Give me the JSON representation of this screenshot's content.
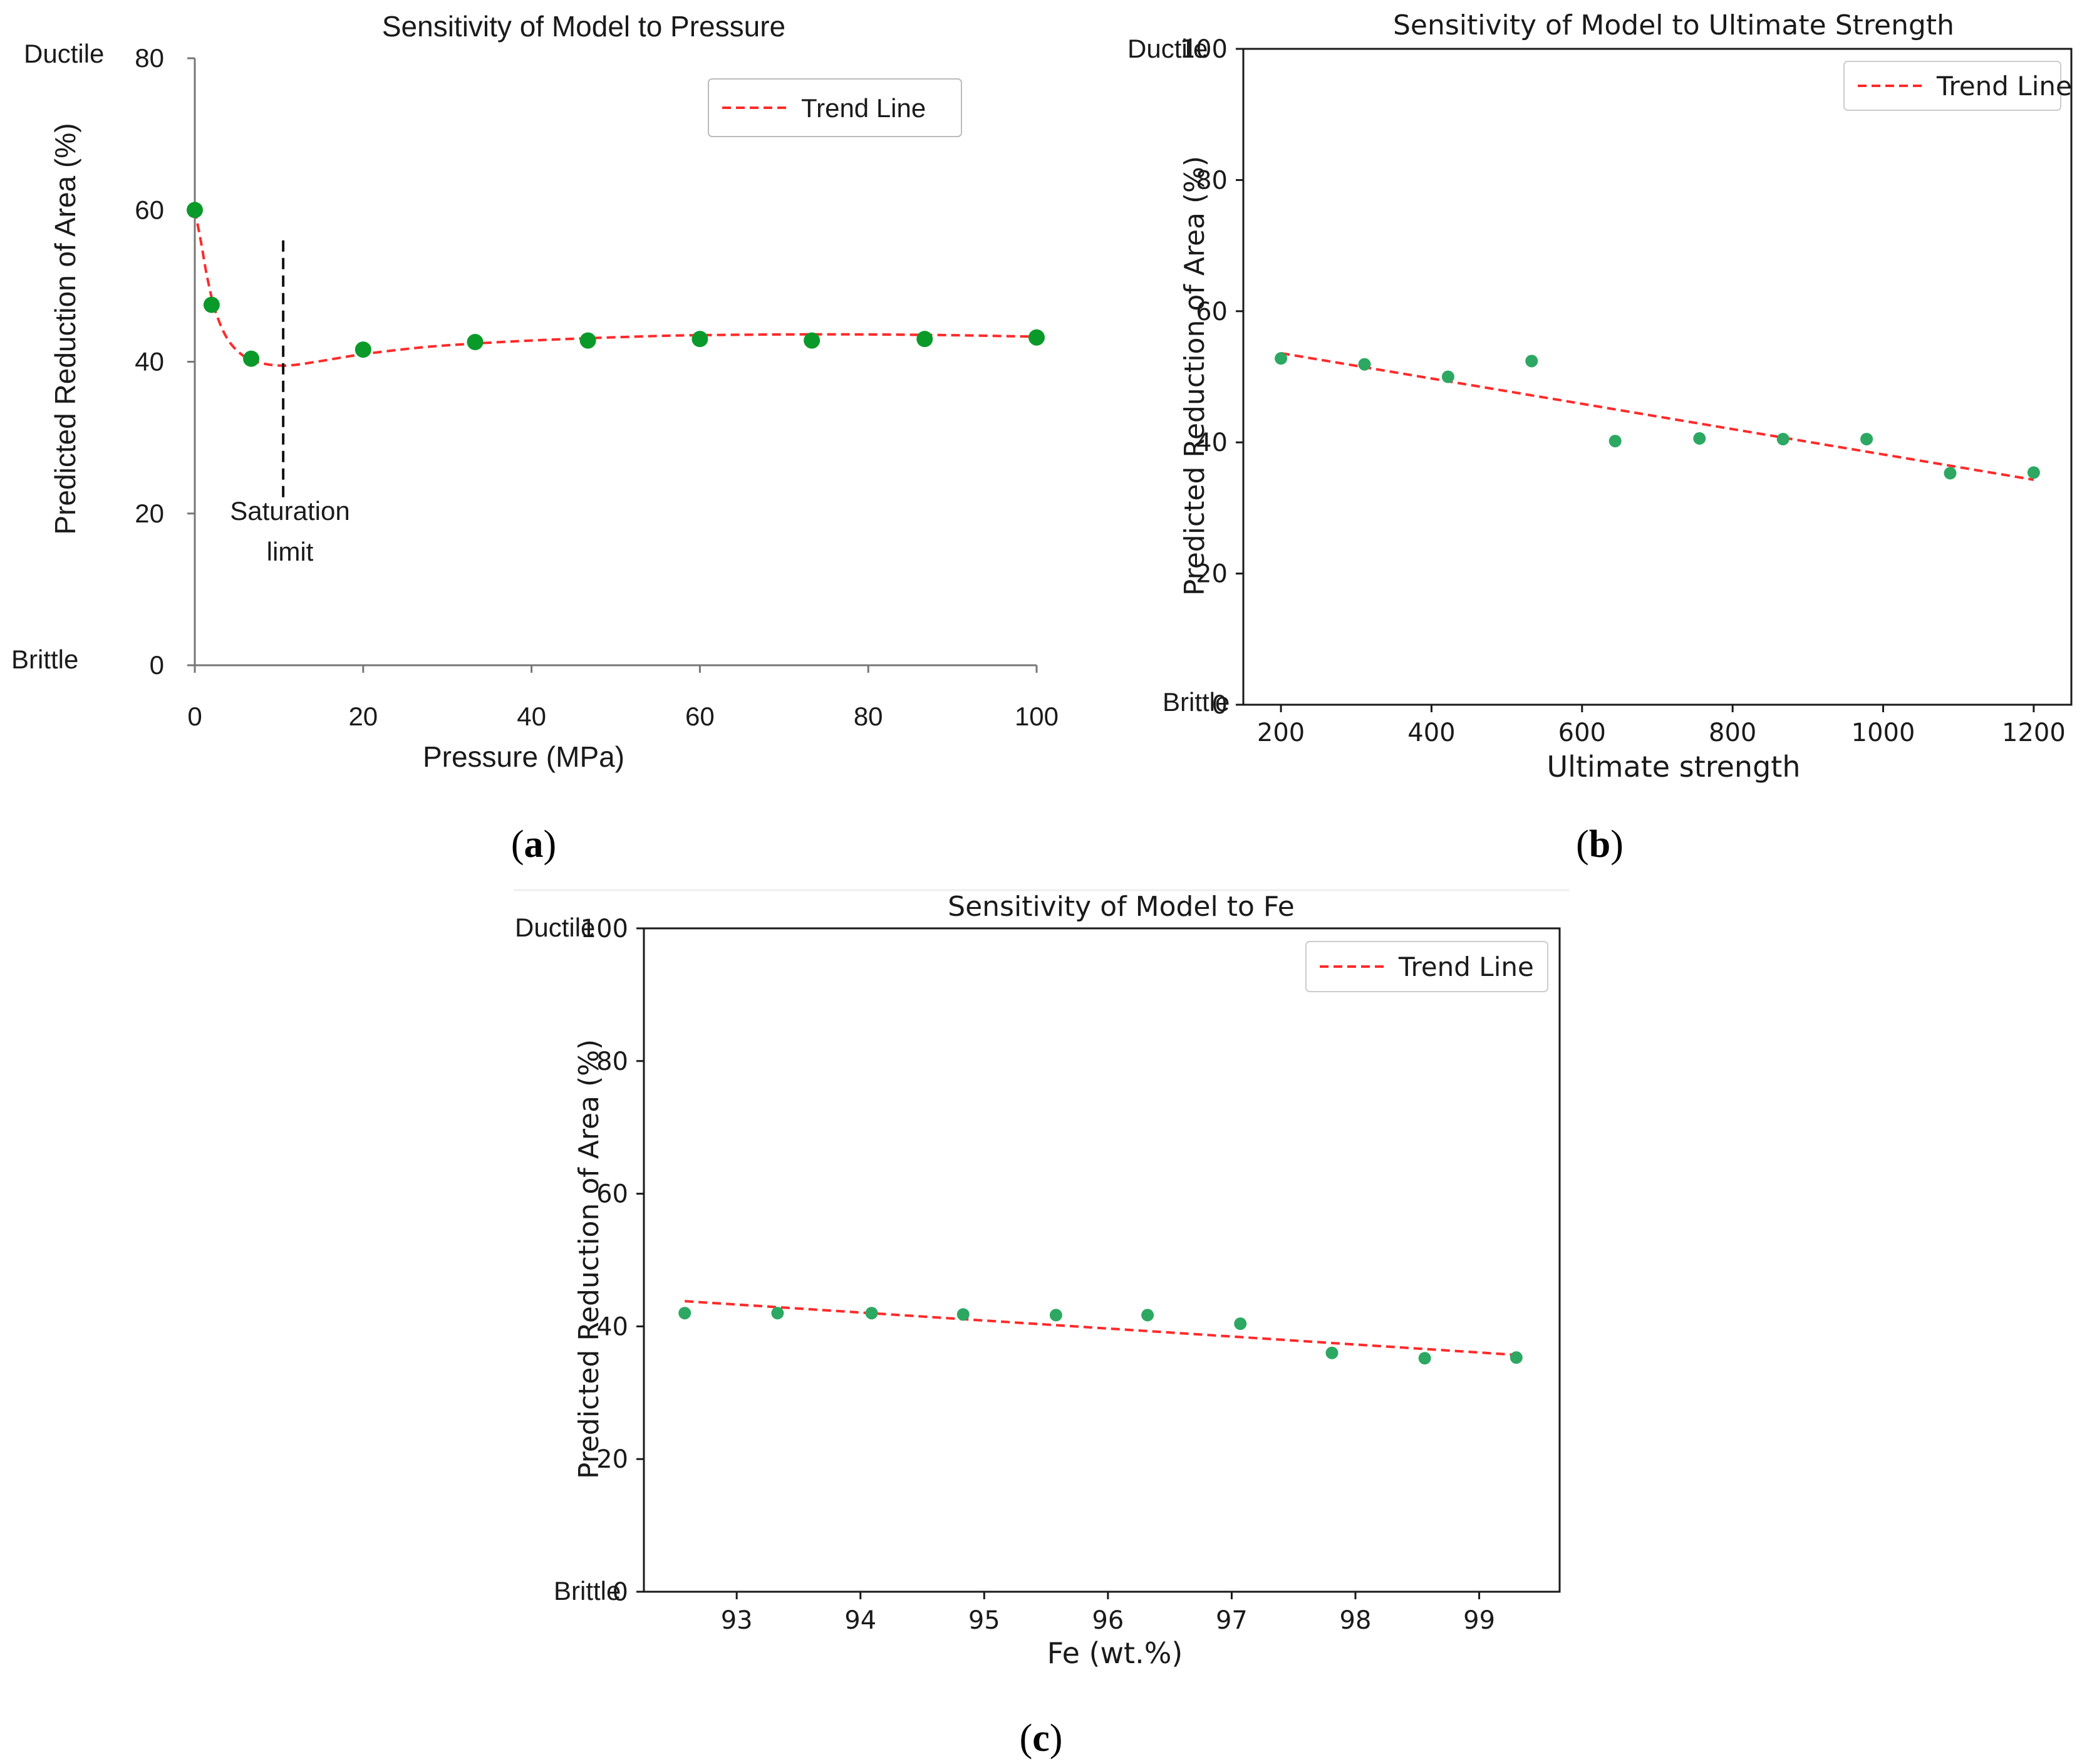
{
  "colors": {
    "trend": "#ff2a2a",
    "point_a": "#0a9a2a",
    "point_bc": "#2ca862",
    "axis": "#1a1a1a"
  },
  "chart_data": [
    {
      "panel": "a",
      "caption_letter": "a",
      "type": "scatter",
      "title": "Sensitivity of Model to Pressure",
      "xlabel": "Pressure (MPa)",
      "ylabel": "Predicted Reduction of Area (%)",
      "xlim": [
        0,
        100
      ],
      "ylim": [
        0,
        80
      ],
      "xticks": [
        0,
        20,
        40,
        60,
        80,
        100
      ],
      "yticks": [
        0,
        20,
        40,
        60,
        80
      ],
      "ductile_label": "Ductile",
      "brittle_label": "Brittle",
      "legend": "Trend Line",
      "legend_position": "top-right",
      "points": {
        "x": [
          0,
          2,
          6.7,
          20,
          33.3,
          46.7,
          60,
          73.3,
          86.7,
          100
        ],
        "y": [
          60,
          47.5,
          40.4,
          41.6,
          42.6,
          42.8,
          43.0,
          42.8,
          43.0,
          43.2
        ]
      },
      "trend": {
        "style": "smooth",
        "x": [
          0,
          0.7,
          1.5,
          2.5,
          4,
          6,
          8,
          10,
          12,
          15,
          20,
          27,
          33.3,
          40,
          46.7,
          55,
          60,
          70,
          80,
          90,
          100
        ],
        "y": [
          60,
          56,
          51,
          46.5,
          42.8,
          40.6,
          39.8,
          39.5,
          39.6,
          40.1,
          41.0,
          41.9,
          42.4,
          42.8,
          43.1,
          43.4,
          43.5,
          43.6,
          43.6,
          43.5,
          43.3
        ]
      },
      "annotation": {
        "text_line1": "Saturation",
        "text_line2": "limit",
        "x": 10.5,
        "y_from": 22,
        "y_to": 56
      }
    },
    {
      "panel": "b",
      "caption_letter": "b",
      "type": "scatter",
      "title": "Sensitivity of Model to Ultimate Strength",
      "xlabel": "Ultimate strength",
      "ylabel": "Predicted Reduction of Area (%)",
      "xlim": [
        150,
        1250
      ],
      "ylim": [
        0,
        100
      ],
      "xticks": [
        200,
        400,
        600,
        800,
        1000,
        1200
      ],
      "yticks": [
        0,
        20,
        40,
        60,
        80,
        100
      ],
      "ductile_label": "Ductile",
      "brittle_label": "Brittle",
      "legend": "Trend Line",
      "legend_position": "top-right",
      "points": {
        "x": [
          200,
          311,
          422,
          533,
          644,
          756,
          867,
          978,
          1089,
          1200
        ],
        "y": [
          52.8,
          51.9,
          50.0,
          52.4,
          40.2,
          40.6,
          40.5,
          40.5,
          35.3,
          35.4
        ]
      },
      "trend": {
        "style": "linear",
        "x": [
          200,
          1200
        ],
        "y": [
          53.6,
          34.3
        ]
      }
    },
    {
      "panel": "c",
      "caption_letter": "c",
      "type": "scatter",
      "title": "Sensitivity of Model to Fe",
      "xlabel": "Fe (wt.%)",
      "ylabel": "Predicted Reduction of Area (%)",
      "xlim": [
        92.25,
        99.65
      ],
      "ylim": [
        0,
        100
      ],
      "xticks": [
        93,
        94,
        95,
        96,
        97,
        98,
        99
      ],
      "yticks": [
        0,
        20,
        40,
        60,
        80,
        100
      ],
      "ductile_label": "Ductile",
      "brittle_label": "Brittle",
      "legend": "Trend Line",
      "legend_position": "top-right",
      "points": {
        "x": [
          92.58,
          93.33,
          94.09,
          94.83,
          95.58,
          96.32,
          97.07,
          97.81,
          98.56,
          99.3
        ],
        "y": [
          42.0,
          42.0,
          42.0,
          41.8,
          41.7,
          41.7,
          40.4,
          36.0,
          35.2,
          35.3
        ]
      },
      "trend": {
        "style": "linear",
        "x": [
          92.58,
          99.3
        ],
        "y": [
          43.8,
          35.7
        ]
      }
    }
  ]
}
